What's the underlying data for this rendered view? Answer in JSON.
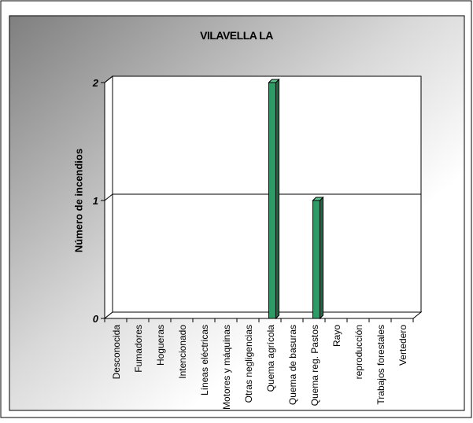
{
  "chart_data": {
    "type": "bar",
    "title": "VILAVELLA LA",
    "ylabel": "Número de incendios",
    "xlabel": "",
    "ylim": [
      0,
      2
    ],
    "yticks": [
      0,
      1,
      2
    ],
    "grid": true,
    "categories": [
      "Desconocida",
      "Fumadores",
      "Hogueras",
      "Intencionado",
      "Líneas eléctricas",
      "Motores y máquinas",
      "Otras negligencias",
      "Quema agrícola",
      "Quema de basuras",
      "Quema reg. Pastos",
      "Rayo",
      "reproducción",
      "Trabajos forestales",
      "Vertedero"
    ],
    "values": [
      0,
      0,
      0,
      0,
      0,
      0,
      0,
      2,
      0,
      1,
      0,
      0,
      0,
      0
    ],
    "colors": {
      "bar": "#2e9b66",
      "bar_side": "#1d6b45",
      "bar_top": "#5cc08e"
    }
  }
}
